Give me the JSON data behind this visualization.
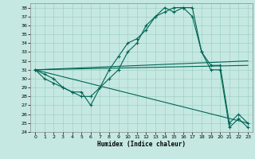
{
  "xlabel": "Humidex (Indice chaleur)",
  "xlim": [
    -0.5,
    23.5
  ],
  "ylim": [
    24,
    38.5
  ],
  "yticks": [
    24,
    25,
    26,
    27,
    28,
    29,
    30,
    31,
    32,
    33,
    34,
    35,
    36,
    37,
    38
  ],
  "xticks": [
    0,
    1,
    2,
    3,
    4,
    5,
    6,
    7,
    8,
    9,
    10,
    11,
    12,
    13,
    14,
    15,
    16,
    17,
    18,
    19,
    20,
    21,
    22,
    23
  ],
  "bg_color": "#c5e8e2",
  "grid_color": "#99ccbb",
  "line_color": "#006655",
  "curve1_x": [
    0,
    1,
    2,
    3,
    4,
    5,
    6,
    7,
    8,
    9,
    10,
    11,
    12,
    13,
    14,
    15,
    16,
    17,
    18,
    19,
    20,
    21,
    22,
    23
  ],
  "curve1_y": [
    31,
    30.5,
    30,
    29,
    28.5,
    28.5,
    27,
    29,
    31,
    32.5,
    34,
    34.5,
    35.5,
    37,
    38,
    37.5,
    38,
    38,
    33,
    31.5,
    31.5,
    25,
    26,
    25
  ],
  "curve2_x": [
    0,
    1,
    2,
    3,
    4,
    5,
    6,
    7,
    8,
    9,
    10,
    11,
    12,
    13,
    14,
    15,
    16,
    17,
    18,
    19,
    20,
    21,
    22,
    23
  ],
  "curve2_y": [
    31,
    30,
    29.5,
    29,
    28.5,
    28,
    28,
    29,
    30,
    31,
    33,
    34,
    36,
    37,
    37.5,
    38,
    38,
    37,
    33,
    31,
    31,
    24.5,
    25.5,
    24.5
  ],
  "line1_x": [
    0,
    23
  ],
  "line1_y": [
    31,
    31.5
  ],
  "line2_x": [
    0,
    23
  ],
  "line2_y": [
    31,
    32.0
  ],
  "line3_x": [
    0,
    23
  ],
  "line3_y": [
    31,
    25.0
  ]
}
